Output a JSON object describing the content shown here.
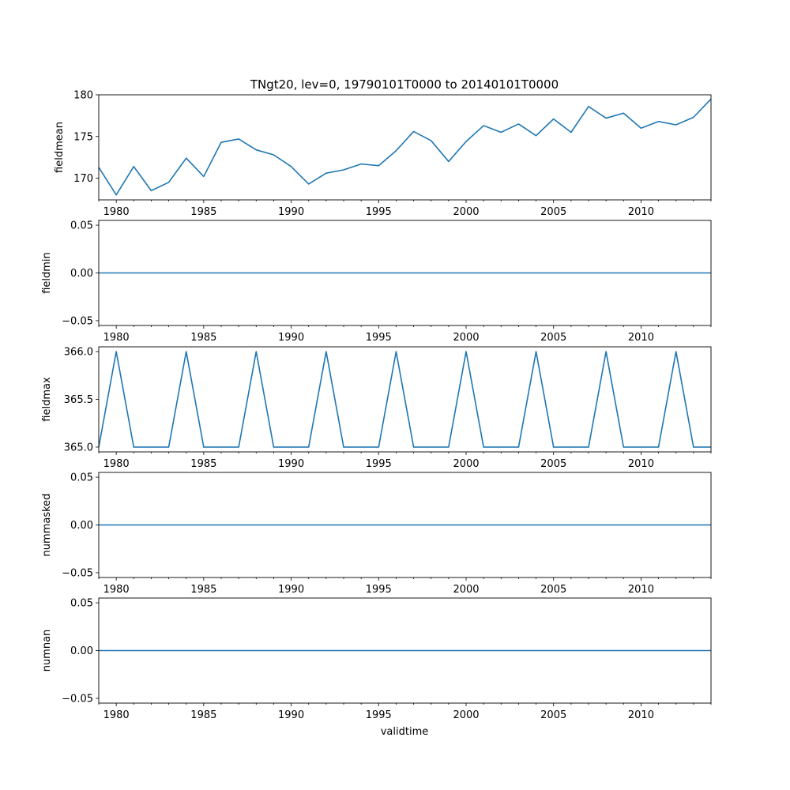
{
  "chart_data": {
    "type": "line",
    "title": "TNgt20, lev=0, 19790101T0000 to 20140101T0000",
    "xlabel": "validtime",
    "line_color": "#1f77b4",
    "x": [
      1979,
      1980,
      1981,
      1982,
      1983,
      1984,
      1985,
      1986,
      1987,
      1988,
      1989,
      1990,
      1991,
      1992,
      1993,
      1994,
      1995,
      1996,
      1997,
      1998,
      1999,
      2000,
      2001,
      2002,
      2003,
      2004,
      2005,
      2006,
      2007,
      2008,
      2009,
      2010,
      2011,
      2012,
      2013,
      2014
    ],
    "xlim": [
      1979,
      2014
    ],
    "xticks": [
      "1980",
      "1985",
      "1990",
      "1995",
      "2000",
      "2005",
      "2010"
    ],
    "subplots": [
      {
        "ylabel": "fieldmean",
        "ylim": [
          167.4,
          180
        ],
        "yticks": [
          "170",
          "175",
          "180"
        ],
        "values": [
          171.3,
          168.0,
          171.4,
          168.5,
          169.5,
          172.4,
          170.2,
          174.3,
          174.7,
          173.4,
          172.8,
          171.4,
          169.3,
          170.6,
          171.0,
          171.7,
          171.5,
          173.3,
          175.6,
          174.5,
          172.0,
          174.4,
          176.3,
          175.5,
          176.5,
          175.1,
          177.1,
          175.5,
          178.6,
          177.2,
          177.8,
          176.0,
          176.8,
          176.4,
          177.3,
          179.5
        ]
      },
      {
        "ylabel": "fieldmin",
        "ylim": [
          -0.055,
          0.055
        ],
        "yticks": [
          "−0.05",
          "0.00",
          "0.05"
        ],
        "values": [
          0,
          0,
          0,
          0,
          0,
          0,
          0,
          0,
          0,
          0,
          0,
          0,
          0,
          0,
          0,
          0,
          0,
          0,
          0,
          0,
          0,
          0,
          0,
          0,
          0,
          0,
          0,
          0,
          0,
          0,
          0,
          0,
          0,
          0,
          0,
          0
        ]
      },
      {
        "ylabel": "fieldmax",
        "ylim": [
          364.95,
          366.05
        ],
        "yticks": [
          "365.0",
          "365.5",
          "366.0"
        ],
        "values": [
          365,
          366,
          365,
          365,
          365,
          366,
          365,
          365,
          365,
          366,
          365,
          365,
          365,
          366,
          365,
          365,
          365,
          366,
          365,
          365,
          365,
          366,
          365,
          365,
          365,
          366,
          365,
          365,
          365,
          366,
          365,
          365,
          365,
          366,
          365,
          365
        ]
      },
      {
        "ylabel": "nummasked",
        "ylim": [
          -0.055,
          0.055
        ],
        "yticks": [
          "−0.05",
          "0.00",
          "0.05"
        ],
        "values": [
          0,
          0,
          0,
          0,
          0,
          0,
          0,
          0,
          0,
          0,
          0,
          0,
          0,
          0,
          0,
          0,
          0,
          0,
          0,
          0,
          0,
          0,
          0,
          0,
          0,
          0,
          0,
          0,
          0,
          0,
          0,
          0,
          0,
          0,
          0,
          0
        ]
      },
      {
        "ylabel": "numnan",
        "ylim": [
          -0.055,
          0.055
        ],
        "yticks": [
          "−0.05",
          "0.00",
          "0.05"
        ],
        "values": [
          0,
          0,
          0,
          0,
          0,
          0,
          0,
          0,
          0,
          0,
          0,
          0,
          0,
          0,
          0,
          0,
          0,
          0,
          0,
          0,
          0,
          0,
          0,
          0,
          0,
          0,
          0,
          0,
          0,
          0,
          0,
          0,
          0,
          0,
          0,
          0
        ]
      }
    ]
  }
}
